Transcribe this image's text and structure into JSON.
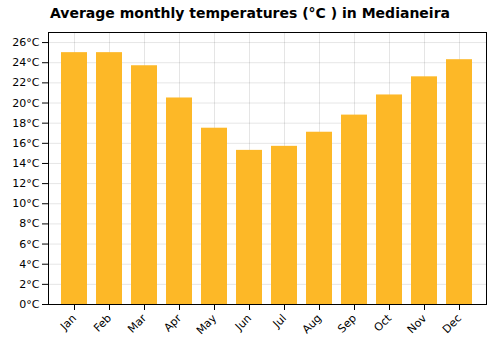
{
  "chart_data": {
    "type": "bar",
    "title": "Average monthly temperatures (°C ) in Medianeira",
    "categories": [
      "Jan",
      "Feb",
      "Mar",
      "Apr",
      "May",
      "Jun",
      "Jul",
      "Aug",
      "Sep",
      "Oct",
      "Nov",
      "Dec"
    ],
    "values": [
      25.0,
      25.0,
      23.7,
      20.5,
      17.5,
      15.3,
      15.7,
      17.1,
      18.8,
      20.8,
      22.6,
      24.3
    ],
    "color": "#FDB827",
    "ylim": [
      0,
      27
    ],
    "yticks": [
      {
        "value": 0,
        "label": "0°C"
      },
      {
        "value": 2,
        "label": "2°C"
      },
      {
        "value": 4,
        "label": "4°C"
      },
      {
        "value": 6,
        "label": "6°C"
      },
      {
        "value": 8,
        "label": "8°C"
      },
      {
        "value": 10,
        "label": "10°C"
      },
      {
        "value": 12,
        "label": "12°C"
      },
      {
        "value": 14,
        "label": "14°C"
      },
      {
        "value": 16,
        "label": "16°C"
      },
      {
        "value": 18,
        "label": "18°C"
      },
      {
        "value": 20,
        "label": "20°C"
      },
      {
        "value": 22,
        "label": "22°C"
      },
      {
        "value": 24,
        "label": "24°C"
      },
      {
        "value": 26,
        "label": "26°C"
      }
    ],
    "grid": true
  }
}
